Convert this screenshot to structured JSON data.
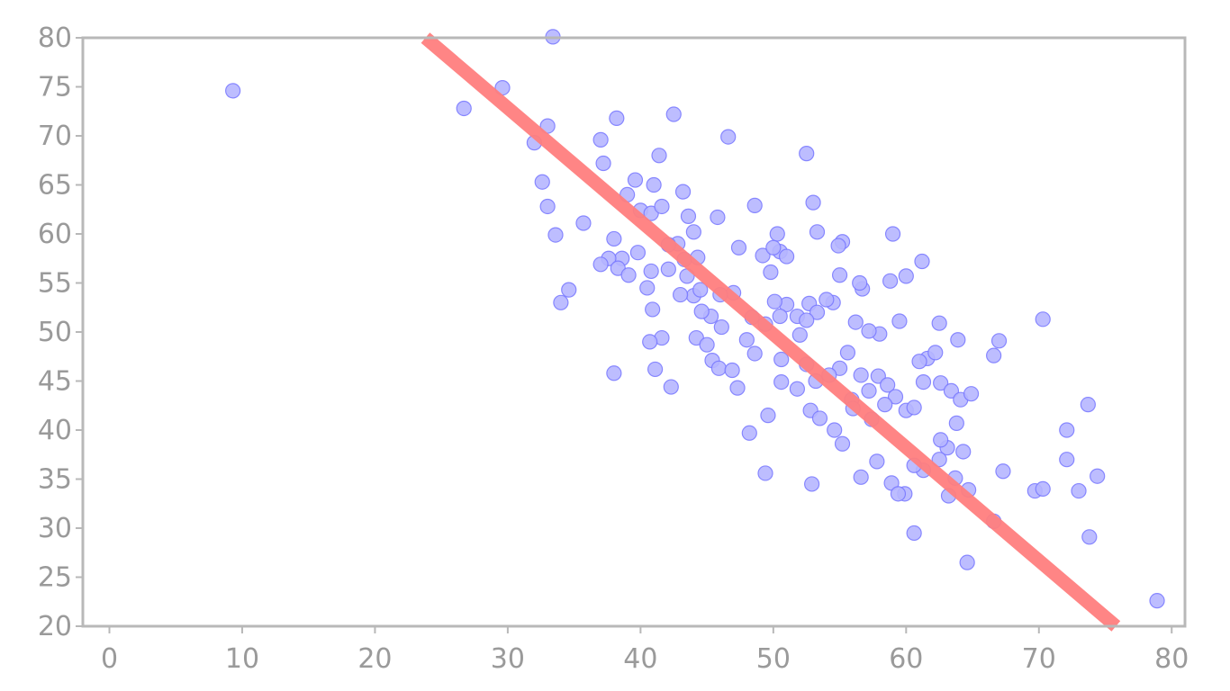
{
  "chart_data": {
    "type": "scatter",
    "title": "",
    "xlabel": "",
    "ylabel": "",
    "xlim": [
      -2,
      81
    ],
    "ylim": [
      20,
      80
    ],
    "x_ticks": [
      0,
      10,
      20,
      30,
      40,
      50,
      60,
      70,
      80
    ],
    "y_ticks": [
      20,
      25,
      30,
      35,
      40,
      45,
      50,
      55,
      60,
      65,
      70,
      75,
      80
    ],
    "grid": false,
    "legend": false,
    "colors": {
      "points": "#7a7aff",
      "fit_line": "#ff7f7f",
      "axes": "#b8b8b8",
      "ticks_text": "#9a9a9a"
    },
    "series": [
      {
        "type": "scatter",
        "points": [
          [
            9.3,
            74.6
          ],
          [
            33.4,
            80.1
          ],
          [
            26.7,
            72.8
          ],
          [
            29.6,
            74.9
          ],
          [
            33.0,
            71.0
          ],
          [
            32.0,
            69.3
          ],
          [
            32.6,
            65.3
          ],
          [
            33.0,
            62.8
          ],
          [
            33.6,
            59.9
          ],
          [
            35.7,
            61.1
          ],
          [
            37.0,
            69.6
          ],
          [
            38.2,
            71.8
          ],
          [
            37.2,
            67.2
          ],
          [
            39.0,
            64.0
          ],
          [
            39.6,
            65.5
          ],
          [
            40.0,
            62.4
          ],
          [
            40.8,
            62.1
          ],
          [
            41.0,
            65.0
          ],
          [
            41.6,
            62.8
          ],
          [
            41.4,
            68.0
          ],
          [
            42.5,
            72.2
          ],
          [
            43.2,
            64.3
          ],
          [
            43.6,
            61.8
          ],
          [
            44.0,
            60.2
          ],
          [
            45.8,
            61.7
          ],
          [
            46.6,
            69.9
          ],
          [
            48.6,
            62.9
          ],
          [
            50.3,
            60.0
          ],
          [
            50.5,
            58.2
          ],
          [
            52.5,
            68.2
          ],
          [
            53.0,
            63.2
          ],
          [
            53.3,
            60.2
          ],
          [
            55.2,
            59.2
          ],
          [
            59.0,
            60.0
          ],
          [
            61.2,
            57.2
          ],
          [
            60.0,
            55.7
          ],
          [
            58.8,
            55.2
          ],
          [
            56.7,
            54.4
          ],
          [
            55.0,
            55.8
          ],
          [
            54.5,
            53.0
          ],
          [
            52.7,
            52.9
          ],
          [
            51.8,
            51.6
          ],
          [
            53.3,
            52.0
          ],
          [
            52.5,
            51.2
          ],
          [
            51.0,
            52.8
          ],
          [
            50.5,
            51.6
          ],
          [
            50.1,
            53.1
          ],
          [
            49.2,
            57.8
          ],
          [
            49.8,
            56.1
          ],
          [
            47.4,
            58.6
          ],
          [
            47.0,
            54.0
          ],
          [
            46.0,
            53.8
          ],
          [
            45.3,
            51.6
          ],
          [
            44.6,
            52.1
          ],
          [
            44.0,
            53.7
          ],
          [
            43.5,
            55.7
          ],
          [
            43.3,
            57.4
          ],
          [
            42.8,
            59.0
          ],
          [
            42.1,
            56.4
          ],
          [
            40.8,
            56.2
          ],
          [
            40.5,
            54.5
          ],
          [
            39.8,
            58.1
          ],
          [
            38.6,
            57.5
          ],
          [
            37.6,
            57.5
          ],
          [
            37.0,
            56.9
          ],
          [
            38.3,
            56.5
          ],
          [
            39.1,
            55.8
          ],
          [
            34.0,
            53.0
          ],
          [
            34.6,
            54.3
          ],
          [
            40.9,
            52.3
          ],
          [
            41.6,
            49.4
          ],
          [
            40.7,
            49.0
          ],
          [
            41.1,
            46.2
          ],
          [
            42.3,
            44.4
          ],
          [
            38.0,
            45.8
          ],
          [
            44.2,
            49.4
          ],
          [
            45.0,
            48.7
          ],
          [
            45.4,
            47.1
          ],
          [
            45.9,
            46.3
          ],
          [
            46.9,
            46.1
          ],
          [
            47.3,
            44.3
          ],
          [
            48.0,
            49.2
          ],
          [
            48.4,
            51.5
          ],
          [
            48.6,
            47.8
          ],
          [
            49.4,
            50.8
          ],
          [
            50.6,
            47.2
          ],
          [
            50.6,
            44.9
          ],
          [
            51.8,
            44.2
          ],
          [
            52.5,
            46.7
          ],
          [
            53.2,
            45.0
          ],
          [
            52.8,
            42.0
          ],
          [
            53.5,
            41.2
          ],
          [
            54.6,
            40.0
          ],
          [
            55.2,
            38.6
          ],
          [
            55.9,
            43.1
          ],
          [
            56.6,
            45.6
          ],
          [
            57.2,
            44.0
          ],
          [
            57.9,
            45.5
          ],
          [
            58.6,
            44.6
          ],
          [
            59.2,
            43.4
          ],
          [
            60.0,
            42.0
          ],
          [
            60.6,
            42.3
          ],
          [
            61.3,
            44.9
          ],
          [
            61.6,
            47.3
          ],
          [
            62.2,
            47.9
          ],
          [
            62.6,
            44.8
          ],
          [
            63.4,
            44.0
          ],
          [
            64.1,
            43.1
          ],
          [
            64.9,
            43.7
          ],
          [
            63.8,
            40.7
          ],
          [
            63.1,
            38.2
          ],
          [
            64.3,
            37.8
          ],
          [
            62.5,
            37.0
          ],
          [
            61.3,
            35.9
          ],
          [
            60.6,
            36.4
          ],
          [
            59.9,
            33.5
          ],
          [
            58.9,
            34.6
          ],
          [
            57.8,
            36.8
          ],
          [
            56.6,
            35.2
          ],
          [
            59.4,
            33.5
          ],
          [
            60.6,
            29.5
          ],
          [
            63.2,
            33.3
          ],
          [
            64.7,
            33.9
          ],
          [
            66.6,
            30.7
          ],
          [
            64.6,
            26.5
          ],
          [
            67.3,
            35.8
          ],
          [
            69.7,
            33.8
          ],
          [
            70.3,
            34.0
          ],
          [
            72.1,
            37.0
          ],
          [
            72.1,
            40.0
          ],
          [
            73.0,
            33.8
          ],
          [
            73.7,
            42.6
          ],
          [
            74.4,
            35.3
          ],
          [
            73.8,
            29.1
          ],
          [
            70.3,
            51.3
          ],
          [
            66.6,
            47.6
          ],
          [
            67.0,
            49.1
          ],
          [
            63.9,
            49.2
          ],
          [
            62.5,
            50.9
          ],
          [
            61.0,
            47.0
          ],
          [
            59.5,
            51.1
          ],
          [
            58.0,
            49.8
          ],
          [
            57.2,
            50.1
          ],
          [
            56.2,
            51.0
          ],
          [
            55.6,
            47.9
          ],
          [
            55.0,
            46.3
          ],
          [
            54.2,
            45.6
          ],
          [
            56.0,
            42.2
          ],
          [
            57.4,
            41.1
          ],
          [
            58.4,
            42.6
          ],
          [
            54.0,
            53.3
          ],
          [
            56.5,
            55.0
          ],
          [
            52.0,
            49.7
          ],
          [
            49.6,
            41.5
          ],
          [
            48.2,
            39.7
          ],
          [
            49.4,
            35.6
          ],
          [
            52.9,
            34.5
          ],
          [
            54.9,
            58.8
          ],
          [
            51.0,
            57.7
          ],
          [
            50.0,
            58.6
          ],
          [
            46.1,
            50.5
          ],
          [
            44.5,
            54.3
          ],
          [
            43.0,
            53.8
          ],
          [
            42.1,
            58.9
          ],
          [
            38.0,
            59.5
          ],
          [
            44.3,
            57.6
          ],
          [
            62.6,
            39.0
          ],
          [
            63.7,
            35.1
          ],
          [
            78.9,
            22.6
          ]
        ]
      },
      {
        "type": "line",
        "points": [
          [
            23.8,
            80.0
          ],
          [
            75.8,
            20.0
          ]
        ]
      }
    ]
  }
}
